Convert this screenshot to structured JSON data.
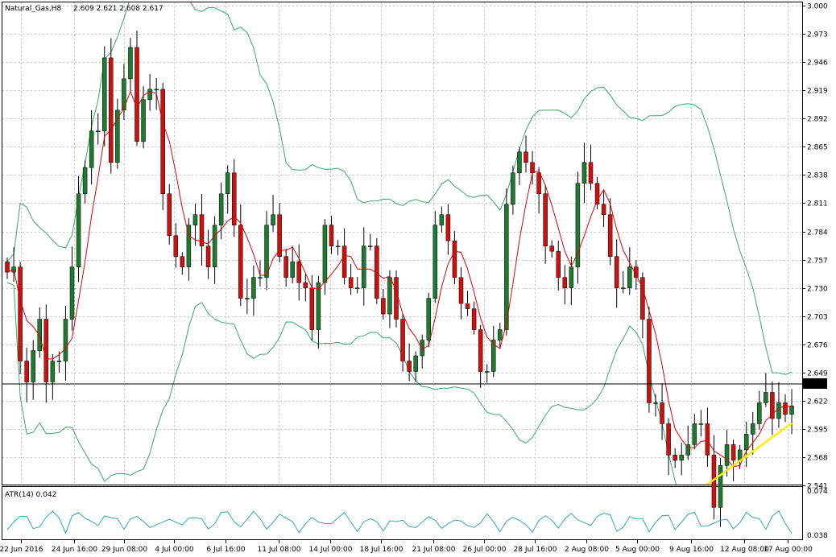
{
  "header": {
    "symbol_label": "Natural_Gas,H8",
    "ohlc_label": "2.609 2.621 2.608 2.617"
  },
  "indicator": {
    "label": "ATR(14) 0.042",
    "ticks": [
      "0.074",
      "0.038"
    ]
  },
  "current_price_label": "2.617",
  "colors": {
    "bull_candle": "#1e7a2e",
    "bear_candle": "#cc1111",
    "bands": "#3aa76a",
    "moving_average": "#e00000",
    "long_average": "#ffee00",
    "atr": "#33a8a8",
    "grid": "#c0c0c0"
  },
  "chart_data": {
    "type": "candlestick",
    "ylim": [
      2.514,
      3.0
    ],
    "ytick_labels": [
      "3.000",
      "2.973",
      "2.946",
      "2.919",
      "2.892",
      "2.865",
      "2.838",
      "2.811",
      "2.784",
      "2.757",
      "2.730",
      "2.703",
      "2.676",
      "2.649",
      "2.622",
      "2.595",
      "2.568",
      "2.541"
    ],
    "xtick_labels": [
      "22 Jun 2016",
      "24 Jun 16:00",
      "29 Jun 08:00",
      "4 Jul 00:00",
      "6 Jul 16:00",
      "11 Jul 08:00",
      "14 Jul 00:00",
      "18 Jul 16:00",
      "21 Jul 08:00",
      "26 Jul 00:00",
      "28 Jul 16:00",
      "2 Aug 08:00",
      "5 Aug 00:00",
      "9 Aug 16:00",
      "12 Aug 08:00",
      "17 Aug 00:00"
    ],
    "close_series": [
      2.745,
      2.75,
      2.66,
      2.64,
      2.67,
      2.7,
      2.64,
      2.66,
      2.66,
      2.7,
      2.75,
      2.82,
      2.845,
      2.88,
      2.88,
      2.95,
      2.85,
      2.9,
      2.93,
      2.96,
      2.87,
      2.91,
      2.92,
      2.92,
      2.82,
      2.78,
      2.76,
      2.75,
      2.79,
      2.8,
      2.77,
      2.75,
      2.79,
      2.82,
      2.84,
      2.79,
      2.72,
      2.72,
      2.74,
      2.74,
      2.79,
      2.8,
      2.76,
      2.74,
      2.755,
      2.735,
      2.73,
      2.69,
      2.735,
      2.79,
      2.77,
      2.77,
      2.74,
      2.73,
      2.73,
      2.77,
      2.77,
      2.72,
      2.705,
      2.74,
      2.7,
      2.66,
      2.65,
      2.665,
      2.68,
      2.72,
      2.79,
      2.8,
      2.775,
      2.74,
      2.715,
      2.71,
      2.69,
      2.65,
      2.65,
      2.68,
      2.69,
      2.81,
      2.84,
      2.86,
      2.85,
      2.84,
      2.82,
      2.77,
      2.765,
      2.74,
      2.73,
      2.75,
      2.83,
      2.85,
      2.83,
      2.81,
      2.8,
      2.76,
      2.73,
      2.73,
      2.75,
      2.74,
      2.7,
      2.62,
      2.62,
      2.6,
      2.57,
      2.565,
      2.57,
      2.58,
      2.6,
      2.6,
      2.57,
      2.52,
      2.56,
      2.58,
      2.565,
      2.575,
      2.59,
      2.6,
      2.62,
      2.63,
      2.605,
      2.62,
      2.609,
      2.617
    ]
  }
}
